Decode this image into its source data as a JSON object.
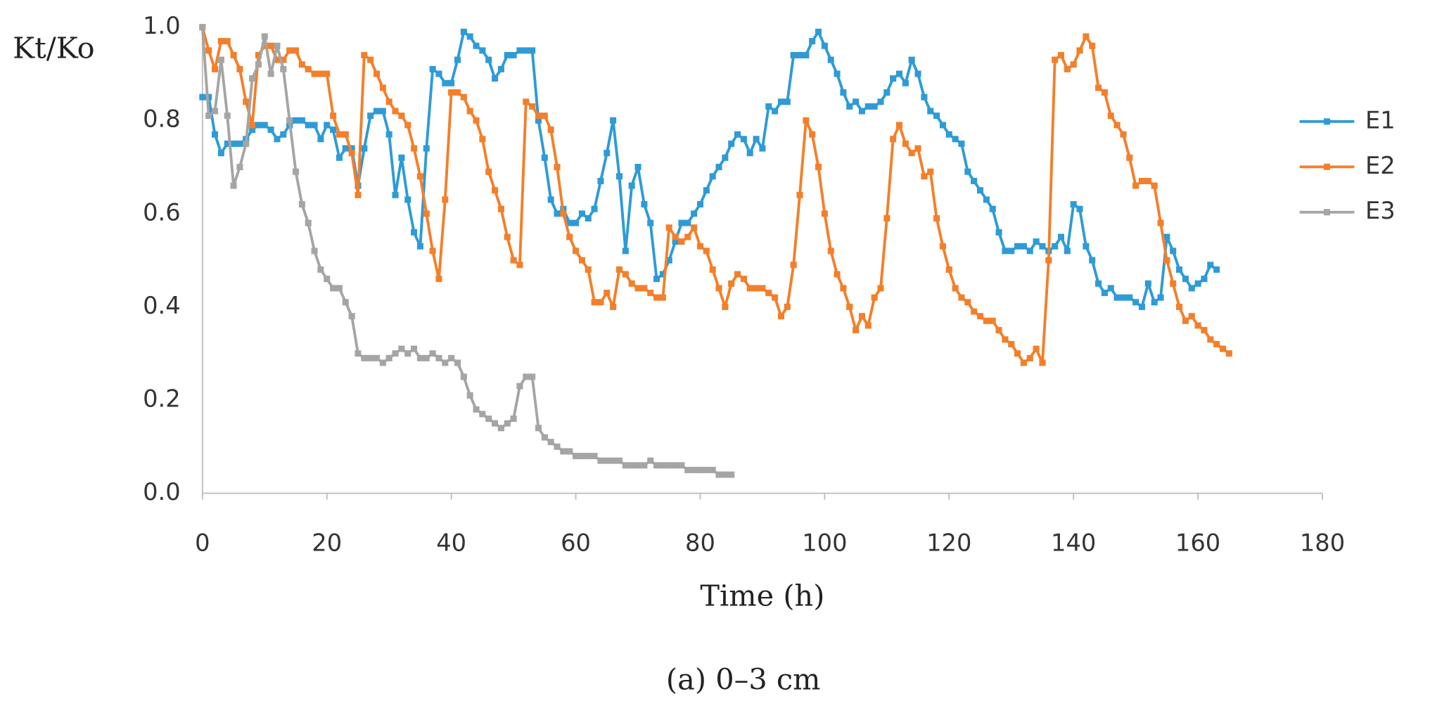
{
  "chart_data": {
    "type": "line",
    "ylabel": "Kt/Ko",
    "xlabel": "Time (h)",
    "caption": "(a) 0–3 cm",
    "xlim": [
      0,
      180
    ],
    "xticks": [
      0,
      20,
      40,
      60,
      80,
      100,
      120,
      140,
      160,
      180
    ],
    "ylim": [
      0,
      1
    ],
    "yticks": [
      {
        "value": 0,
        "label": "0.0"
      },
      {
        "value": 0.2,
        "label": "0.2"
      },
      {
        "value": 0.4,
        "label": "0.4"
      },
      {
        "value": 0.6,
        "label": "0.6"
      },
      {
        "value": 0.8,
        "label": "0.8"
      },
      {
        "value": 1,
        "label": "1.0"
      }
    ],
    "grid": false,
    "legend": "right",
    "x": [
      0,
      1,
      2,
      3,
      4,
      5,
      6,
      7,
      8,
      9,
      10,
      11,
      12,
      13,
      14,
      15,
      16,
      17,
      18,
      19,
      20,
      21,
      22,
      23,
      24,
      25,
      26,
      27,
      28,
      29,
      30,
      31,
      32,
      33,
      34,
      35,
      36,
      37,
      38,
      39,
      40,
      41,
      42,
      43,
      44,
      45,
      46,
      47,
      48,
      49,
      50,
      51,
      52,
      53,
      54,
      55,
      56,
      57,
      58,
      59,
      60,
      61,
      62,
      63,
      64,
      65,
      66,
      67,
      68,
      69,
      70,
      71,
      72,
      73,
      74,
      75,
      76,
      77,
      78,
      79,
      80,
      81,
      82,
      83,
      84,
      85,
      86,
      87,
      88,
      89,
      90,
      91,
      92,
      93,
      94,
      95,
      96,
      97,
      98,
      99,
      100,
      101,
      102,
      103,
      104,
      105,
      106,
      107,
      108,
      109,
      110,
      111,
      112,
      113,
      114,
      115,
      116,
      117,
      118,
      119,
      120,
      121,
      122,
      123,
      124,
      125,
      126,
      127,
      128,
      129,
      130,
      131,
      132,
      133,
      134,
      135,
      136,
      137,
      138,
      139,
      140,
      141,
      142,
      143,
      144,
      145,
      146,
      147,
      148,
      149,
      150,
      151,
      152,
      153,
      154,
      155,
      156,
      157,
      158,
      159,
      160,
      161,
      162,
      163,
      164,
      165
    ],
    "series": [
      {
        "name": "E1",
        "color": "#2e9bd6",
        "values": [
          0.85,
          0.85,
          0.77,
          0.73,
          0.75,
          0.75,
          0.75,
          0.76,
          0.78,
          0.79,
          0.79,
          0.78,
          0.76,
          0.77,
          0.79,
          0.8,
          0.8,
          0.79,
          0.79,
          0.76,
          0.79,
          0.78,
          0.72,
          0.74,
          0.74,
          0.66,
          0.74,
          0.81,
          0.82,
          0.82,
          0.77,
          0.64,
          0.72,
          0.63,
          0.56,
          0.53,
          0.74,
          0.91,
          0.9,
          0.88,
          0.88,
          0.93,
          0.99,
          0.98,
          0.96,
          0.95,
          0.93,
          0.89,
          0.91,
          0.94,
          0.94,
          0.95,
          0.95,
          0.95,
          0.8,
          0.72,
          0.63,
          0.6,
          0.61,
          0.58,
          0.58,
          0.6,
          0.59,
          0.61,
          0.67,
          0.73,
          0.8,
          0.68,
          0.52,
          0.66,
          0.7,
          0.62,
          0.58,
          0.46,
          0.47,
          0.5,
          0.54,
          0.58,
          0.58,
          0.6,
          0.62,
          0.65,
          0.68,
          0.7,
          0.72,
          0.75,
          0.77,
          0.76,
          0.73,
          0.76,
          0.74,
          0.83,
          0.82,
          0.84,
          0.84,
          0.94,
          0.94,
          0.94,
          0.97,
          0.99,
          0.96,
          0.93,
          0.9,
          0.86,
          0.83,
          0.84,
          0.82,
          0.83,
          0.83,
          0.84,
          0.86,
          0.89,
          0.9,
          0.88,
          0.93,
          0.9,
          0.85,
          0.82,
          0.81,
          0.79,
          0.77,
          0.76,
          0.75,
          0.69,
          0.67,
          0.65,
          0.63,
          0.61,
          0.56,
          0.52,
          0.52,
          0.53,
          0.53,
          0.52,
          0.54,
          0.53,
          0.52,
          0.53,
          0.55,
          0.52,
          0.62,
          0.61,
          0.53,
          0.5,
          0.45,
          0.43,
          0.44,
          0.42,
          0.42,
          0.42,
          0.41,
          0.4,
          0.45,
          0.41,
          0.42,
          0.55,
          0.52,
          0.48,
          0.46,
          0.44,
          0.45,
          0.46,
          0.49,
          0.48,
          null,
          null
        ]
      },
      {
        "name": "E2",
        "color": "#f47f2a",
        "values": [
          1.0,
          0.95,
          0.91,
          0.97,
          0.97,
          0.94,
          0.91,
          0.84,
          0.79,
          0.94,
          0.96,
          0.96,
          0.93,
          0.93,
          0.95,
          0.95,
          0.92,
          0.91,
          0.9,
          0.9,
          0.9,
          0.81,
          0.77,
          0.77,
          0.73,
          0.64,
          0.94,
          0.93,
          0.9,
          0.87,
          0.84,
          0.82,
          0.81,
          0.79,
          0.74,
          0.68,
          0.6,
          0.52,
          0.46,
          0.63,
          0.86,
          0.86,
          0.85,
          0.82,
          0.8,
          0.76,
          0.69,
          0.65,
          0.61,
          0.55,
          0.5,
          0.49,
          0.84,
          0.83,
          0.81,
          0.81,
          0.78,
          0.7,
          0.6,
          0.55,
          0.52,
          0.5,
          0.48,
          0.41,
          0.41,
          0.43,
          0.4,
          0.48,
          0.47,
          0.45,
          0.44,
          0.44,
          0.43,
          0.42,
          0.42,
          0.57,
          0.55,
          0.54,
          0.55,
          0.57,
          0.53,
          0.52,
          0.48,
          0.44,
          0.4,
          0.45,
          0.47,
          0.46,
          0.44,
          0.44,
          0.44,
          0.43,
          0.42,
          0.38,
          0.4,
          0.49,
          0.64,
          0.8,
          0.77,
          0.7,
          0.6,
          0.52,
          0.47,
          0.44,
          0.4,
          0.35,
          0.38,
          0.36,
          0.42,
          0.44,
          0.59,
          0.76,
          0.79,
          0.75,
          0.73,
          0.74,
          0.68,
          0.69,
          0.59,
          0.53,
          0.48,
          0.44,
          0.42,
          0.41,
          0.39,
          0.38,
          0.37,
          0.37,
          0.35,
          0.33,
          0.32,
          0.3,
          0.28,
          0.29,
          0.31,
          0.28,
          0.5,
          0.93,
          0.94,
          0.91,
          0.92,
          0.95,
          0.98,
          0.96,
          0.87,
          0.86,
          0.81,
          0.79,
          0.77,
          0.72,
          0.66,
          0.67,
          0.67,
          0.66,
          0.58,
          0.5,
          0.45,
          0.4,
          0.37,
          0.38,
          0.36,
          0.35,
          0.33,
          0.32,
          0.31,
          0.3
        ]
      },
      {
        "name": "E3",
        "color": "#a5a5a5",
        "values": [
          1.0,
          0.81,
          0.82,
          0.93,
          0.81,
          0.66,
          0.7,
          0.75,
          0.89,
          0.92,
          0.98,
          0.9,
          0.96,
          0.91,
          0.8,
          0.69,
          0.62,
          0.58,
          0.52,
          0.48,
          0.46,
          0.44,
          0.44,
          0.41,
          0.38,
          0.3,
          0.29,
          0.29,
          0.29,
          0.28,
          0.29,
          0.3,
          0.31,
          0.3,
          0.31,
          0.29,
          0.29,
          0.3,
          0.29,
          0.28,
          0.29,
          0.28,
          0.25,
          0.21,
          0.18,
          0.17,
          0.16,
          0.15,
          0.14,
          0.15,
          0.16,
          0.23,
          0.25,
          0.25,
          0.14,
          0.12,
          0.11,
          0.1,
          0.09,
          0.09,
          0.08,
          0.08,
          0.08,
          0.08,
          0.07,
          0.07,
          0.07,
          0.07,
          0.06,
          0.06,
          0.06,
          0.06,
          0.07,
          0.06,
          0.06,
          0.06,
          0.06,
          0.06,
          0.05,
          0.05,
          0.05,
          0.05,
          0.05,
          0.04,
          0.04,
          0.04,
          null,
          null,
          null,
          null,
          null,
          null,
          null,
          null,
          null,
          null,
          null,
          null,
          null,
          null,
          null,
          null,
          null,
          null,
          null,
          null,
          null,
          null,
          null,
          null,
          null,
          null,
          null,
          null,
          null,
          null,
          null,
          null,
          null,
          null,
          null,
          null,
          null,
          null,
          null,
          null,
          null,
          null,
          null,
          null,
          null,
          null,
          null,
          null,
          null,
          null,
          null,
          null,
          null,
          null,
          null,
          null,
          null,
          null,
          null,
          null,
          null,
          null,
          null,
          null,
          null,
          null,
          null,
          null,
          null,
          null,
          null,
          null,
          null,
          null,
          null,
          null,
          null,
          null,
          null,
          null
        ]
      }
    ]
  }
}
